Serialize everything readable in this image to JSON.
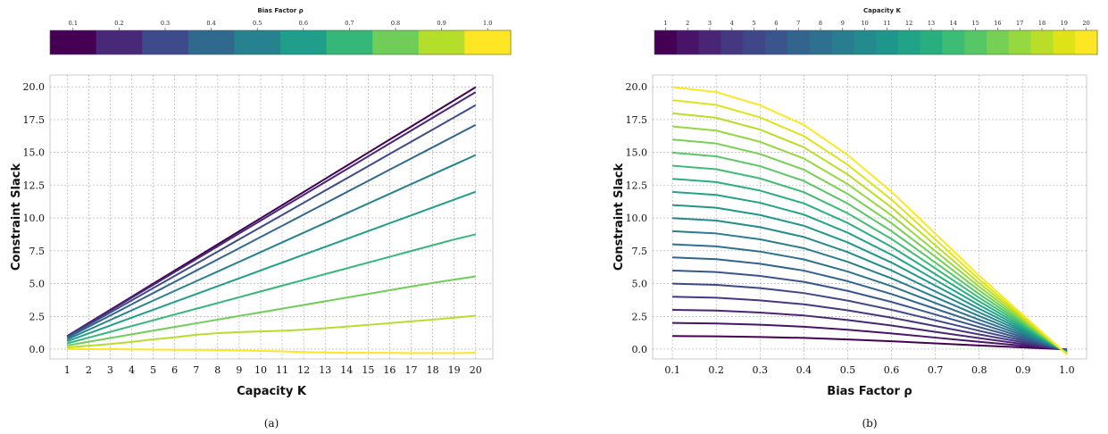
{
  "chart_data": [
    {
      "type": "line",
      "panel_label": "(a)",
      "xlabel": "Capacity K",
      "ylabel": "Constraint Slack",
      "x": [
        1,
        2,
        3,
        4,
        5,
        6,
        7,
        8,
        9,
        10,
        11,
        12,
        13,
        14,
        15,
        16,
        17,
        18,
        19,
        20
      ],
      "x_ticks": [
        "1",
        "2",
        "3",
        "4",
        "5",
        "6",
        "7",
        "8",
        "9",
        "10",
        "11",
        "12",
        "13",
        "14",
        "15",
        "16",
        "17",
        "18",
        "19",
        "20"
      ],
      "y_ticks": [
        "0.0",
        "2.5",
        "5.0",
        "7.5",
        "10.0",
        "12.5",
        "15.0",
        "17.5",
        "20.0"
      ],
      "y_tick_values": [
        0,
        2.5,
        5,
        7.5,
        10,
        12.5,
        15,
        17.5,
        20
      ],
      "xlim": [
        0.2,
        20.8
      ],
      "ylim": [
        -0.75,
        20.9
      ],
      "grid": true,
      "colorbar": {
        "title": "Bias Factor ρ",
        "ticks": [
          "0.1",
          "0.2",
          "0.3",
          "0.4",
          "0.5",
          "0.6",
          "0.7",
          "0.8",
          "0.9",
          "1.0"
        ],
        "colors": [
          "#440154",
          "#482878",
          "#3e4a89",
          "#31688e",
          "#26828e",
          "#1f9e89",
          "#35b779",
          "#6ece58",
          "#b5de2b",
          "#fde725"
        ]
      },
      "series_by_rho": [
        {
          "rho": 0.1,
          "color": "#440154",
          "values": [
            0.999,
            1.997,
            2.996,
            3.994,
            4.993,
            5.991,
            6.99,
            7.988,
            8.987,
            9.985,
            10.98,
            11.98,
            12.98,
            13.98,
            14.98,
            15.98,
            16.97,
            17.97,
            18.97,
            19.97
          ]
        },
        {
          "rho": 0.2,
          "color": "#482878",
          "values": [
            0.98,
            1.96,
            2.94,
            3.92,
            4.9,
            5.88,
            6.86,
            7.84,
            8.82,
            9.8,
            10.78,
            11.76,
            12.74,
            13.72,
            14.7,
            15.68,
            16.66,
            17.64,
            18.62,
            19.6
          ]
        },
        {
          "rho": 0.3,
          "color": "#3e4a89",
          "values": [
            0.93,
            1.86,
            2.79,
            3.72,
            4.65,
            5.58,
            6.51,
            7.44,
            8.37,
            9.3,
            10.23,
            11.16,
            12.09,
            13.02,
            13.95,
            14.88,
            15.81,
            16.74,
            17.67,
            18.6
          ]
        },
        {
          "rho": 0.4,
          "color": "#31688e",
          "values": [
            0.855,
            1.71,
            2.565,
            3.42,
            4.275,
            5.13,
            5.985,
            6.84,
            7.695,
            8.55,
            9.405,
            10.26,
            11.115,
            11.97,
            12.825,
            13.68,
            14.535,
            15.39,
            16.245,
            17.1
          ]
        },
        {
          "rho": 0.5,
          "color": "#26828e",
          "values": [
            0.74,
            1.48,
            2.22,
            2.96,
            3.7,
            4.44,
            5.18,
            5.92,
            6.66,
            7.4,
            8.14,
            8.88,
            9.62,
            10.36,
            11.1,
            11.84,
            12.58,
            13.32,
            14.06,
            14.8
          ]
        },
        {
          "rho": 0.6,
          "color": "#1f9e89",
          "values": [
            0.6,
            1.2,
            1.8,
            2.4,
            3.0,
            3.6,
            4.2,
            4.8,
            5.4,
            6.0,
            6.6,
            7.2,
            7.8,
            8.4,
            9.0,
            9.6,
            10.2,
            10.8,
            11.4,
            12.0
          ]
        },
        {
          "rho": 0.7,
          "color": "#35b779",
          "values": [
            0.44,
            0.88,
            1.32,
            1.76,
            2.2,
            2.64,
            3.08,
            3.52,
            3.96,
            4.4,
            4.84,
            5.28,
            5.72,
            6.16,
            6.6,
            7.04,
            7.48,
            7.92,
            8.36,
            8.75
          ]
        },
        {
          "rho": 0.8,
          "color": "#6ece58",
          "values": [
            0.28,
            0.56,
            0.85,
            1.13,
            1.41,
            1.69,
            1.97,
            2.25,
            2.53,
            2.81,
            3.09,
            3.37,
            3.65,
            3.93,
            4.21,
            4.49,
            4.77,
            5.05,
            5.3,
            5.55
          ]
        },
        {
          "rho": 0.9,
          "color": "#b5de2b",
          "values": [
            0.13,
            0.26,
            0.39,
            0.55,
            0.75,
            0.9,
            1.1,
            1.22,
            1.3,
            1.35,
            1.4,
            1.48,
            1.6,
            1.72,
            1.85,
            1.98,
            2.12,
            2.25,
            2.4,
            2.55
          ]
        },
        {
          "rho": 1.0,
          "color": "#fde725",
          "values": [
            0.0,
            0.0,
            0.0,
            -0.02,
            -0.03,
            -0.05,
            -0.05,
            -0.07,
            -0.1,
            -0.13,
            -0.17,
            -0.22,
            -0.25,
            -0.28,
            -0.28,
            -0.28,
            -0.3,
            -0.3,
            -0.3,
            -0.28
          ]
        }
      ]
    },
    {
      "type": "line",
      "panel_label": "(b)",
      "xlabel": "Bias Factor ρ",
      "ylabel": "Constraint Slack",
      "x": [
        0.1,
        0.2,
        0.3,
        0.4,
        0.5,
        0.6,
        0.7,
        0.8,
        0.9,
        1.0
      ],
      "x_ticks": [
        "0.1",
        "0.2",
        "0.3",
        "0.4",
        "0.5",
        "0.6",
        "0.7",
        "0.8",
        "0.9",
        "1.0"
      ],
      "x_tick_values": [
        0.1,
        0.2,
        0.3,
        0.4,
        0.5,
        0.6,
        0.7,
        0.8,
        0.9,
        1.0
      ],
      "y_ticks": [
        "0.0",
        "2.5",
        "5.0",
        "7.5",
        "10.0",
        "12.5",
        "15.0",
        "17.5",
        "20.0"
      ],
      "y_tick_values": [
        0,
        2.5,
        5,
        7.5,
        10,
        12.5,
        15,
        17.5,
        20
      ],
      "xlim": [
        0.055,
        1.045
      ],
      "ylim": [
        -0.75,
        20.9
      ],
      "grid": true,
      "colorbar": {
        "title": "Capacity K",
        "ticks": [
          "1",
          "2",
          "3",
          "4",
          "5",
          "6",
          "7",
          "8",
          "9",
          "10",
          "11",
          "12",
          "13",
          "14",
          "15",
          "16",
          "17",
          "18",
          "19",
          "20"
        ],
        "colors": [
          "#440154",
          "#481467",
          "#482576",
          "#453781",
          "#3f4788",
          "#39558c",
          "#32648e",
          "#2d718e",
          "#287d8e",
          "#238a8d",
          "#1f968b",
          "#20a386",
          "#29af7f",
          "#3cbc75",
          "#56c667",
          "#75d054",
          "#95d840",
          "#bade28",
          "#dde318",
          "#fde725"
        ]
      },
      "curve_shape_multipliers": [
        0.999,
        0.98,
        0.93,
        0.855,
        0.74,
        0.6,
        0.44,
        0.28,
        0.13,
        0.0
      ],
      "rho1_endpoint_values": [
        -0.02,
        -0.04,
        -0.06,
        -0.08,
        -0.1,
        -0.12,
        -0.14,
        -0.16,
        -0.18,
        -0.2,
        -0.22,
        -0.24,
        -0.26,
        -0.28,
        -0.3,
        -0.32,
        -0.34,
        -0.36,
        -0.38,
        -0.4
      ]
    }
  ]
}
